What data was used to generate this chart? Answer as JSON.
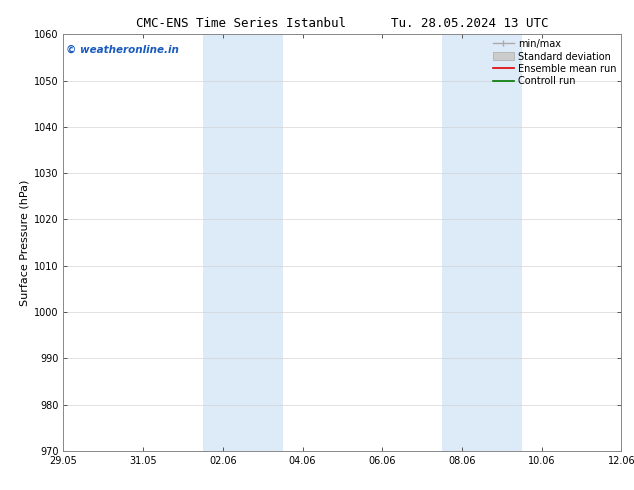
{
  "title_left": "CMC-ENS Time Series Istanbul",
  "title_right": "Tu. 28.05.2024 13 UTC",
  "ylabel": "Surface Pressure (hPa)",
  "ylim": [
    970,
    1060
  ],
  "yticks": [
    970,
    980,
    990,
    1000,
    1010,
    1020,
    1030,
    1040,
    1050,
    1060
  ],
  "xlim": [
    0,
    14
  ],
  "xtick_labels": [
    "29.05",
    "31.05",
    "02.06",
    "04.06",
    "06.06",
    "08.06",
    "10.06",
    "12.06"
  ],
  "xtick_positions": [
    0,
    2,
    4,
    6,
    8,
    10,
    12,
    14
  ],
  "shade_regions": [
    {
      "start": 3.5,
      "end": 5.5
    },
    {
      "start": 9.5,
      "end": 11.5
    }
  ],
  "shade_color": "#ddeaf7",
  "watermark": "© weatheronline.in",
  "watermark_color": "#1a5bbf",
  "background_color": "#ffffff",
  "plot_bg_color": "#ffffff",
  "spine_color": "#888888",
  "tick_color": "#555555",
  "legend_items": [
    {
      "label": "min/max",
      "color": "#aaaaaa",
      "style": "minmax"
    },
    {
      "label": "Standard deviation",
      "color": "#cccccc",
      "style": "stddev"
    },
    {
      "label": "Ensemble mean run",
      "color": "#dd0000",
      "style": "line"
    },
    {
      "label": "Controll run",
      "color": "#007700",
      "style": "line"
    }
  ],
  "title_fontsize": 9,
  "ylabel_fontsize": 8,
  "tick_fontsize": 7,
  "watermark_fontsize": 7.5,
  "legend_fontsize": 7
}
